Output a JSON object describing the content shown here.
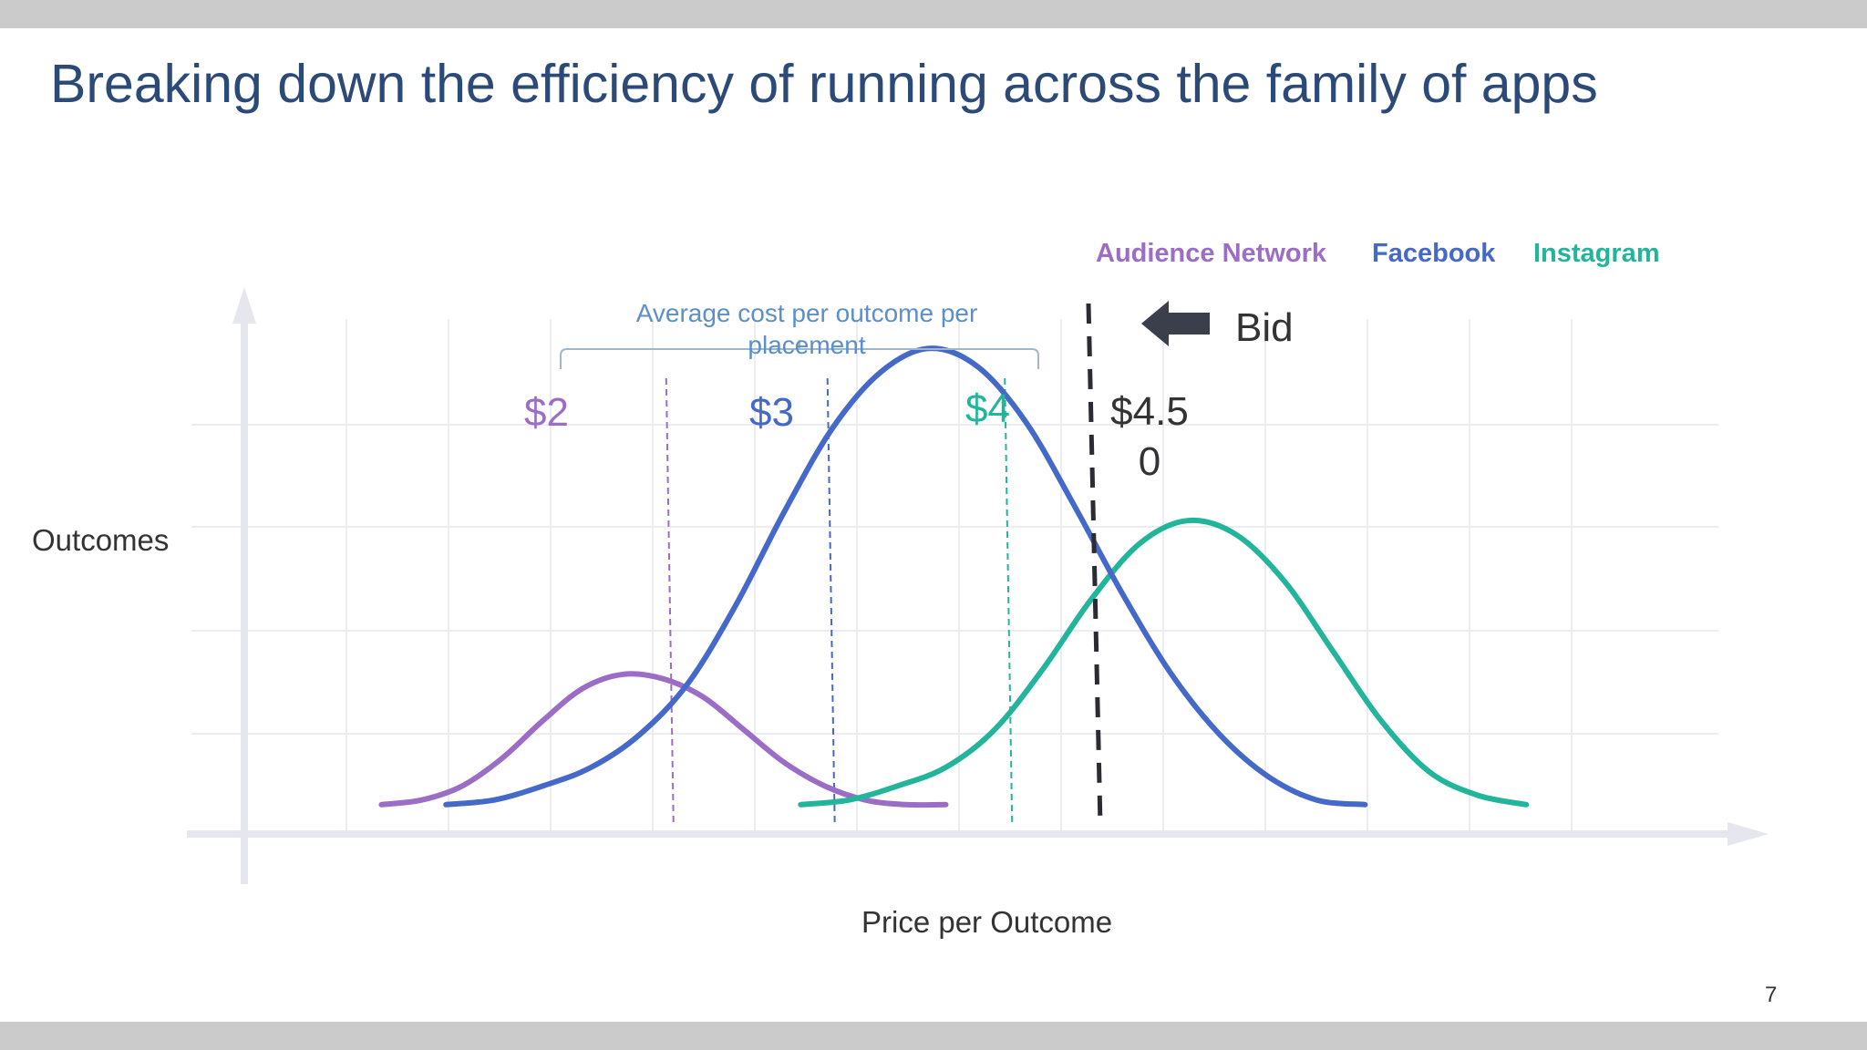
{
  "slide": {
    "title": "Breaking down the efficiency of running across the family of apps",
    "page_number": "7"
  },
  "chart_data": {
    "type": "line",
    "title": "",
    "xlabel": "Price per Outcome",
    "ylabel": "Outcomes",
    "grid": true,
    "legend_position": "top-right",
    "series": [
      {
        "name": "Audience Network",
        "color": "#9b6dc6",
        "shape": "bell",
        "average_cost_label": "$2",
        "x": [
          0.0,
          0.25,
          0.5,
          0.75,
          1.0,
          1.25,
          1.5,
          1.75,
          2.0,
          2.25,
          2.5,
          2.75,
          3.0,
          3.25,
          3.5
        ],
        "y": [
          0.02,
          0.03,
          0.06,
          0.12,
          0.2,
          0.27,
          0.3,
          0.29,
          0.25,
          0.18,
          0.11,
          0.06,
          0.03,
          0.02,
          0.02
        ]
      },
      {
        "name": "Facebook",
        "color": "#4469c8",
        "shape": "bell",
        "average_cost_label": "$3",
        "x": [
          0.4,
          0.7,
          1.0,
          1.3,
          1.6,
          1.9,
          2.2,
          2.5,
          2.8,
          3.1,
          3.4,
          3.7,
          4.0,
          4.3,
          4.6,
          4.9,
          5.2,
          5.5,
          5.8,
          6.1
        ],
        "y": [
          0.02,
          0.03,
          0.06,
          0.1,
          0.17,
          0.28,
          0.45,
          0.65,
          0.83,
          0.95,
          1.0,
          0.96,
          0.84,
          0.66,
          0.47,
          0.3,
          0.17,
          0.08,
          0.03,
          0.02
        ]
      },
      {
        "name": "Instagram",
        "color": "#22b59b",
        "shape": "bell",
        "average_cost_label": "$4",
        "x": [
          2.6,
          2.9,
          3.2,
          3.5,
          3.8,
          4.1,
          4.4,
          4.7,
          5.0,
          5.3,
          5.6,
          5.9,
          6.2,
          6.5,
          6.8,
          7.1
        ],
        "y": [
          0.02,
          0.03,
          0.06,
          0.1,
          0.18,
          0.31,
          0.46,
          0.58,
          0.63,
          0.6,
          0.5,
          0.35,
          0.2,
          0.09,
          0.04,
          0.02
        ]
      }
    ],
    "markers": [
      {
        "x": 1.8,
        "label": "$2",
        "series": "Audience Network"
      },
      {
        "x": 2.8,
        "label": "$3",
        "series": "Facebook"
      },
      {
        "x": 3.9,
        "label": "$4",
        "series": "Instagram"
      }
    ],
    "bid": {
      "label": "Bid",
      "value_label": "$4.50",
      "x": 4.2
    },
    "annotation": {
      "text": "Average cost per outcome per placement",
      "span": [
        1.8,
        3.9
      ]
    },
    "xlim": [
      -0.5,
      7.5
    ],
    "ylim": [
      0,
      1.2
    ]
  }
}
